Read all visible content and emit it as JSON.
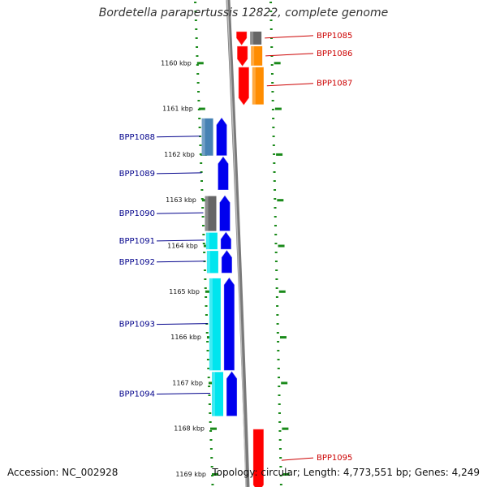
{
  "title": "Bordetella parapertussis 12822, complete genome",
  "footer": {
    "accession": "Accession: NC_002928",
    "summary": "Topology: circular; Length: 4,773,551 bp; Genes: 4,249"
  },
  "scale_unit": "kbp",
  "ticks": [
    {
      "label": "1160 kbp",
      "kbp": 1160
    },
    {
      "label": "1161 kbp",
      "kbp": 1161
    },
    {
      "label": "1162 kbp",
      "kbp": 1162
    },
    {
      "label": "1163 kbp",
      "kbp": 1163
    },
    {
      "label": "1164 kbp",
      "kbp": 1164
    },
    {
      "label": "1165 kbp",
      "kbp": 1165
    },
    {
      "label": "1166 kbp",
      "kbp": 1166
    },
    {
      "label": "1167 kbp",
      "kbp": 1167
    },
    {
      "label": "1168 kbp",
      "kbp": 1168
    },
    {
      "label": "1169 kbp",
      "kbp": 1169
    }
  ],
  "colors": {
    "backbone": "#7a7a7a",
    "forward_label": "#cc0000",
    "reverse_label": "#00008b",
    "ruler": "#1a8a1a"
  },
  "genes": [
    {
      "name": "BPP1085",
      "strand": "forward",
      "start_kbp": 1159.3,
      "end_kbp": 1159.62,
      "cds_color": "#ff0000",
      "gene_color": "#666666"
    },
    {
      "name": "BPP1086",
      "strand": "forward",
      "start_kbp": 1159.62,
      "end_kbp": 1160.08,
      "cds_color": "#ff0000",
      "gene_color": "#ff8c00"
    },
    {
      "name": "BPP1087",
      "strand": "forward",
      "start_kbp": 1160.08,
      "end_kbp": 1160.93,
      "cds_color": "#ff0000",
      "gene_color": "#ff8c00"
    },
    {
      "name": "BPP1088",
      "strand": "reverse",
      "start_kbp": 1161.2,
      "end_kbp": 1162.05,
      "cds_color": "#0000ee",
      "gene_color": "#4682b4"
    },
    {
      "name": "BPP1089",
      "strand": "reverse",
      "start_kbp": 1162.05,
      "end_kbp": 1162.8,
      "cds_color": "#0000ee",
      "gene_color": "#ffffff"
    },
    {
      "name": "BPP1090",
      "strand": "reverse",
      "start_kbp": 1162.9,
      "end_kbp": 1163.7,
      "cds_color": "#0000ee",
      "gene_color": "#666666"
    },
    {
      "name": "BPP1091",
      "strand": "reverse",
      "start_kbp": 1163.7,
      "end_kbp": 1164.1,
      "cds_color": "#0000ee",
      "gene_color": "#00e5ee"
    },
    {
      "name": "BPP1092",
      "strand": "reverse",
      "start_kbp": 1164.1,
      "end_kbp": 1164.62,
      "cds_color": "#0000ee",
      "gene_color": "#00e5ee"
    },
    {
      "name": "BPP1093",
      "strand": "reverse",
      "start_kbp": 1164.7,
      "end_kbp": 1166.75,
      "cds_color": "#0000ee",
      "gene_color": "#00e5ee"
    },
    {
      "name": "BPP1094",
      "strand": "reverse",
      "start_kbp": 1166.75,
      "end_kbp": 1167.75,
      "cds_color": "#0000ee",
      "gene_color": "#00e5ee"
    },
    {
      "name": "BPP1095",
      "strand": "forward",
      "start_kbp": 1168.0,
      "end_kbp": 1169.4,
      "cds_color": "#ff0000",
      "gene_color": ""
    }
  ]
}
